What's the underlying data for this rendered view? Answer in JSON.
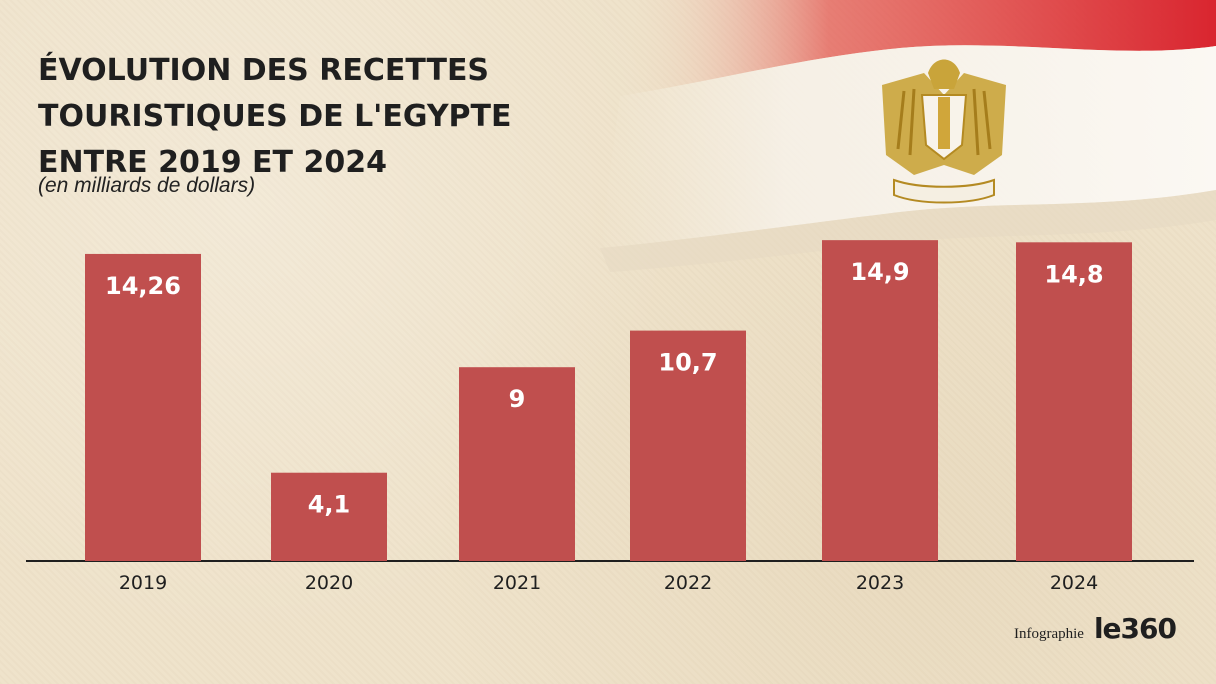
{
  "title": "ÉVOLUTION DES RECETTES TOURISTIQUES DE L'EGYPTE ENTRE 2019 ET 2024",
  "subtitle": "(en  milliards de dollars)",
  "colors": {
    "bar": "#c04f4e",
    "axis": "#1f1f1f",
    "label": "#ffffff"
  },
  "chart_data": {
    "type": "bar",
    "title": "ÉVOLUTION DES RECETTES TOURISTIQUES DE L'EGYPTE ENTRE 2019 ET 2024",
    "subtitle": "(en  milliards de dollars)",
    "categories": [
      "2019",
      "2020",
      "2021",
      "2022",
      "2023",
      "2024"
    ],
    "values": [
      14.26,
      4.1,
      9,
      10.7,
      14.9,
      14.8
    ],
    "value_labels": [
      "14,26",
      "4,1",
      "9",
      "10,7",
      "14,9",
      "14,8"
    ],
    "xlabel": "",
    "ylabel": "",
    "ylim": [
      0,
      15
    ],
    "grid": false
  },
  "footer": {
    "credit": "Infographie",
    "brand": "le360"
  },
  "decoration": {
    "flag_icon": "egypt-flag-icon",
    "emblem_icon": "eagle-of-saladin-icon"
  }
}
